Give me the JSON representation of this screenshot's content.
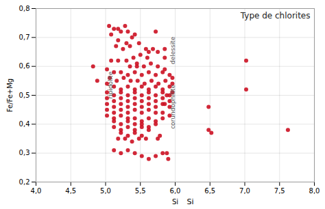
{
  "chart_data": {
    "type": "scatter",
    "title": "Type de chlorites",
    "xlabel": "Si",
    "ylabel": "Fe/Fe+Mg",
    "color": "#cc1122",
    "grid": true,
    "xlim": [
      4.0,
      8.0
    ],
    "ylim": [
      0.2,
      0.8
    ],
    "xticks": [
      {
        "value": 4.0,
        "label": "4,0"
      },
      {
        "value": 4.5,
        "label": "4,5"
      },
      {
        "value": 5.0,
        "label": "5,0"
      },
      {
        "value": 5.5,
        "label": "5,5"
      },
      {
        "value": 6.0,
        "label": "6,0"
      },
      {
        "value": 6.5,
        "label": "6,5"
      },
      {
        "value": 7.0,
        "label": "7,0"
      },
      {
        "value": 7.5,
        "label": "7,5"
      },
      {
        "value": 8.0,
        "label": "8,0"
      }
    ],
    "yticks": [
      {
        "value": 0.2,
        "label": "0,2"
      },
      {
        "value": 0.3,
        "label": "0,3"
      },
      {
        "value": 0.4,
        "label": "0,4"
      },
      {
        "value": 0.5,
        "label": "0,5"
      },
      {
        "value": 0.6,
        "label": "0,6"
      },
      {
        "value": 0.7,
        "label": "0,7"
      },
      {
        "value": 0.8,
        "label": "0,8"
      }
    ],
    "annotations": [
      {
        "text": "ripidolite",
        "x": 5.07,
        "y": 0.535
      },
      {
        "text": "corundophilite",
        "x": 5.97,
        "y": 0.46
      },
      {
        "text": "delessite",
        "x": 5.97,
        "y": 0.655
      },
      {
        "text": "Si"
      }
    ],
    "x": [
      5.05,
      5.12,
      5.18,
      5.08,
      5.22,
      5.28,
      5.32,
      5.18,
      5.38,
      5.42,
      5.3,
      5.15,
      5.25,
      5.35,
      5.48,
      5.58,
      5.62,
      5.5,
      5.68,
      5.75,
      5.85,
      5.6,
      5.4,
      5.3,
      5.18,
      5.08,
      5.72,
      5.45,
      5.35,
      5.45,
      5.55,
      5.65,
      5.75,
      5.85,
      5.02,
      5.12,
      5.22,
      5.32,
      5.42,
      5.52,
      5.62,
      5.72,
      5.82,
      5.92,
      5.96,
      5.06,
      5.16,
      5.26,
      5.36,
      5.46,
      5.56,
      5.66,
      5.76,
      5.86,
      5.96,
      5.02,
      5.12,
      5.22,
      5.32,
      5.42,
      5.52,
      5.62,
      5.72,
      5.82,
      5.92,
      5.02,
      5.12,
      5.22,
      5.32,
      5.42,
      5.52,
      5.62,
      5.72,
      5.82,
      5.92,
      5.96,
      5.02,
      5.12,
      5.22,
      5.32,
      5.42,
      5.52,
      5.62,
      5.72,
      5.82,
      5.02,
      5.12,
      5.22,
      5.32,
      5.42,
      5.52,
      5.62,
      5.72,
      5.82,
      5.92,
      5.02,
      5.12,
      5.22,
      5.32,
      5.42,
      5.52,
      5.62,
      5.72,
      5.82,
      5.92,
      5.02,
      5.12,
      5.22,
      5.32,
      5.42,
      5.52,
      5.62,
      5.72,
      5.82,
      5.12,
      5.22,
      5.32,
      5.42,
      5.52,
      5.62,
      5.72,
      5.12,
      5.22,
      5.32,
      5.42,
      5.52,
      5.62,
      5.22,
      5.32,
      5.42,
      5.52,
      5.18,
      5.28,
      5.38,
      5.48,
      5.58,
      5.12,
      5.22,
      5.32,
      5.42,
      5.52,
      5.62,
      5.72,
      6.48,
      6.48,
      6.52,
      7.02,
      7.02,
      7.62,
      5.88,
      5.92,
      5.85,
      5.78,
      5.75,
      5.82,
      5.88,
      5.9,
      5.85,
      4.82,
      4.88
    ],
    "values": [
      0.74,
      0.73,
      0.73,
      0.71,
      0.72,
      0.74,
      0.72,
      0.69,
      0.7,
      0.71,
      0.68,
      0.67,
      0.66,
      0.67,
      0.68,
      0.66,
      0.65,
      0.64,
      0.66,
      0.65,
      0.66,
      0.63,
      0.63,
      0.62,
      0.62,
      0.62,
      0.72,
      0.6,
      0.6,
      0.61,
      0.6,
      0.61,
      0.6,
      0.59,
      0.59,
      0.58,
      0.58,
      0.57,
      0.58,
      0.57,
      0.58,
      0.57,
      0.58,
      0.57,
      0.56,
      0.56,
      0.55,
      0.56,
      0.55,
      0.55,
      0.54,
      0.55,
      0.54,
      0.55,
      0.54,
      0.54,
      0.53,
      0.52,
      0.53,
      0.52,
      0.53,
      0.52,
      0.53,
      0.52,
      0.53,
      0.51,
      0.5,
      0.51,
      0.5,
      0.51,
      0.5,
      0.51,
      0.5,
      0.51,
      0.5,
      0.51,
      0.49,
      0.48,
      0.49,
      0.48,
      0.49,
      0.48,
      0.49,
      0.48,
      0.49,
      0.47,
      0.46,
      0.47,
      0.46,
      0.47,
      0.46,
      0.47,
      0.46,
      0.47,
      0.46,
      0.45,
      0.44,
      0.45,
      0.44,
      0.45,
      0.44,
      0.45,
      0.44,
      0.44,
      0.43,
      0.43,
      0.42,
      0.43,
      0.42,
      0.42,
      0.41,
      0.42,
      0.41,
      0.42,
      0.41,
      0.4,
      0.41,
      0.4,
      0.4,
      0.39,
      0.4,
      0.39,
      0.38,
      0.39,
      0.38,
      0.39,
      0.38,
      0.37,
      0.36,
      0.37,
      0.36,
      0.35,
      0.35,
      0.34,
      0.35,
      0.35,
      0.31,
      0.3,
      0.31,
      0.3,
      0.29,
      0.28,
      0.29,
      0.46,
      0.38,
      0.37,
      0.52,
      0.62,
      0.38,
      0.5,
      0.48,
      0.47,
      0.36,
      0.35,
      0.3,
      0.3,
      0.28,
      0.63,
      0.6,
      0.55
    ]
  }
}
